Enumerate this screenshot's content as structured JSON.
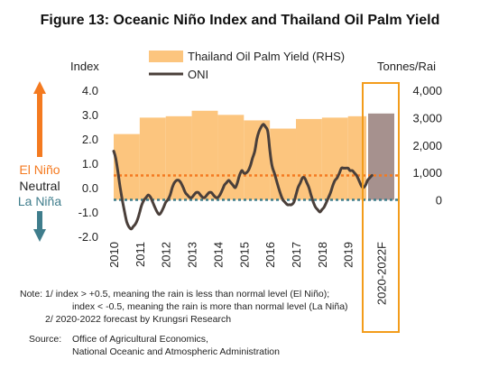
{
  "chart_data": {
    "type": "area+line",
    "title": "Figure 13: Oceanic Niño Index and Thailand Oil Palm Yield",
    "left_axis": {
      "label": "Index",
      "ticks": [
        "4.0",
        "3.0",
        "2.0",
        "1.0",
        "0.0",
        "-1.0",
        "-2.0"
      ],
      "range": [
        -2,
        4
      ]
    },
    "right_axis": {
      "label": "Tonnes/Rai",
      "ticks": [
        "4,000",
        "3,000",
        "2,000",
        "1,000",
        "0"
      ],
      "range": [
        -1333,
        4000
      ]
    },
    "x_ticks": [
      "2010",
      "2011",
      "2012",
      "2013",
      "2014",
      "2015",
      "2016",
      "2017",
      "2018",
      "2019",
      "2020-2022F"
    ],
    "x_range": [
      2010,
      2020.95
    ],
    "legend": {
      "area_label": "Thailand Oil Palm Yield (RHS)",
      "line_label": "ONI"
    },
    "yield_series": {
      "name": "Thailand Oil Palm Yield (RHS)",
      "x": [
        2010,
        2011,
        2012,
        2013,
        2014,
        2015,
        2016,
        2017,
        2018,
        2019
      ],
      "values": [
        2400,
        3000,
        3050,
        3250,
        3100,
        2900,
        2600,
        2950,
        3000,
        3050
      ]
    },
    "forecast_bar": {
      "label": "2020-2022F",
      "value": 3150
    },
    "oni_series": {
      "name": "ONI",
      "x": [
        2010.0,
        2010.08,
        2010.17,
        2010.25,
        2010.33,
        2010.42,
        2010.5,
        2010.58,
        2010.67,
        2010.75,
        2010.83,
        2010.92,
        2011.0,
        2011.08,
        2011.17,
        2011.25,
        2011.33,
        2011.42,
        2011.5,
        2011.58,
        2011.67,
        2011.75,
        2011.83,
        2011.92,
        2012.0,
        2012.08,
        2012.17,
        2012.25,
        2012.33,
        2012.42,
        2012.5,
        2012.58,
        2012.67,
        2012.75,
        2012.83,
        2012.92,
        2013.0,
        2013.08,
        2013.17,
        2013.25,
        2013.33,
        2013.42,
        2013.5,
        2013.58,
        2013.67,
        2013.75,
        2013.83,
        2013.92,
        2014.0,
        2014.08,
        2014.17,
        2014.25,
        2014.33,
        2014.42,
        2014.5,
        2014.58,
        2014.67,
        2014.75,
        2014.83,
        2014.92,
        2015.0,
        2015.08,
        2015.17,
        2015.25,
        2015.33,
        2015.42,
        2015.5,
        2015.58,
        2015.67,
        2015.75,
        2015.83,
        2015.92,
        2016.0,
        2016.08,
        2016.17,
        2016.25,
        2016.33,
        2016.42,
        2016.5,
        2016.58,
        2016.67,
        2016.75,
        2016.83,
        2016.92,
        2017.0,
        2017.08,
        2017.17,
        2017.25,
        2017.33,
        2017.42,
        2017.5,
        2017.58,
        2017.67,
        2017.75,
        2017.83,
        2017.92,
        2018.0,
        2018.08,
        2018.17,
        2018.25,
        2018.33,
        2018.42,
        2018.5,
        2018.58,
        2018.67,
        2018.75,
        2018.83,
        2018.92,
        2019.0,
        2019.08,
        2019.17,
        2019.25,
        2019.33,
        2019.42,
        2019.5,
        2019.58,
        2019.67,
        2019.75,
        2019.83,
        2019.92
      ],
      "values": [
        1.5,
        1.2,
        0.6,
        0.0,
        -0.5,
        -1.0,
        -1.4,
        -1.6,
        -1.7,
        -1.6,
        -1.5,
        -1.3,
        -1.0,
        -0.7,
        -0.5,
        -0.4,
        -0.3,
        -0.4,
        -0.6,
        -0.8,
        -1.0,
        -1.1,
        -1.0,
        -0.8,
        -0.6,
        -0.5,
        -0.3,
        0.0,
        0.2,
        0.3,
        0.3,
        0.2,
        0.0,
        -0.2,
        -0.3,
        -0.4,
        -0.4,
        -0.3,
        -0.2,
        -0.2,
        -0.3,
        -0.4,
        -0.4,
        -0.3,
        -0.2,
        -0.2,
        -0.3,
        -0.4,
        -0.4,
        -0.3,
        -0.1,
        0.1,
        0.2,
        0.3,
        0.2,
        0.1,
        0.0,
        0.2,
        0.5,
        0.7,
        0.6,
        0.6,
        0.7,
        0.9,
        1.2,
        1.5,
        2.0,
        2.3,
        2.5,
        2.6,
        2.5,
        2.3,
        1.5,
        0.9,
        0.6,
        0.3,
        0.0,
        -0.3,
        -0.5,
        -0.6,
        -0.7,
        -0.7,
        -0.7,
        -0.6,
        -0.3,
        0.0,
        0.2,
        0.4,
        0.4,
        0.2,
        0.0,
        -0.3,
        -0.6,
        -0.8,
        -0.9,
        -1.0,
        -0.9,
        -0.8,
        -0.6,
        -0.4,
        -0.2,
        0.1,
        0.3,
        0.4,
        0.6,
        0.8,
        0.8,
        0.8,
        0.8,
        0.7,
        0.7,
        0.6,
        0.5,
        0.3,
        0.1,
        0.0,
        0.1,
        0.3,
        0.4,
        0.5
      ]
    },
    "thresholds": {
      "el_nino": 0.5,
      "la_nina": -0.5
    },
    "regime_labels": {
      "el_nino": "El Niño",
      "neutral": "Neutral",
      "la_nina": "La Niña"
    },
    "colors": {
      "area": "#FCC57E",
      "line": "#4A3F3A",
      "forecast": "#A6918E",
      "el_nino": "#F47A20",
      "la_nina": "#3F7D8C",
      "forecast_box": "#F39C1B"
    }
  },
  "notes": {
    "line1": "Note: 1/ index > +0.5, meaning the rain is less than normal level (El Niño);",
    "line2": "index < -0.5, meaning the rain is more than normal level (La Niña)",
    "line3": "2/ 2020-2022 forecast by Krungsri Research",
    "source_label": "Source:",
    "source1": "Office of Agricultural Economics,",
    "source2": "National Oceanic and Atmospheric Administration"
  }
}
